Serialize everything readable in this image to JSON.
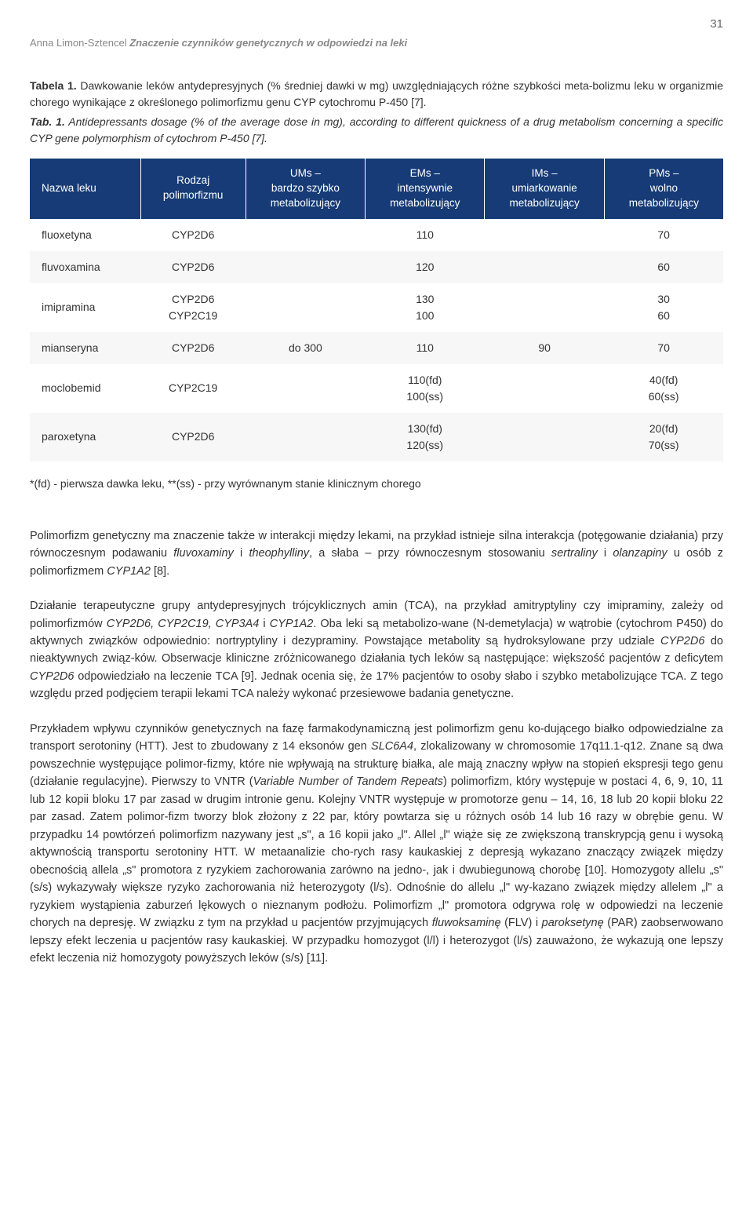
{
  "page_number": "31",
  "header": {
    "author": "Anna Limon-Sztencel",
    "title": "Znaczenie czynników genetycznych w odpowiedzi na leki"
  },
  "table_caption_pl": {
    "label": "Tabela 1.",
    "text": " Dawkowanie leków antydepresyjnych (% średniej dawki w mg) uwzględniających różne szybkości meta-bolizmu leku w organizmie chorego wynikające z określonego polimorfizmu genu CYP cytochromu P-450 [7]."
  },
  "table_caption_en": {
    "label": "Tab. 1.",
    "text": " Antidepressants dosage (% of the average dose in mg), according to different quickness of a drug metabolism concerning a specific CYP gene polymorphism of cytochrom P-450 [7]."
  },
  "table": {
    "header_bg": "#163b76",
    "header_fg": "#ffffff",
    "columns": [
      "Nazwa leku",
      "Rodzaj\npolimorfizmu",
      "UMs –\nbardzo szybko\nmetabolizujący",
      "EMs –\nintensywnie\nmetabolizujący",
      "IMs –\numiarkowanie\nmetabolizujący",
      "PMs –\nwolno\nmetabolizujący"
    ],
    "rows": [
      [
        "fluoxetyna",
        "CYP2D6",
        "",
        "110",
        "",
        "70"
      ],
      [
        "fluvoxamina",
        "CYP2D6",
        "",
        "120",
        "",
        "60"
      ],
      [
        "imipramina",
        "CYP2D6\nCYP2C19",
        "",
        "130\n100",
        "",
        "30\n60"
      ],
      [
        "mianseryna",
        "CYP2D6",
        "do 300",
        "110",
        "90",
        "70"
      ],
      [
        "moclobemid",
        "CYP2C19",
        "",
        "110(fd)\n100(ss)",
        "",
        "40(fd)\n60(ss)"
      ],
      [
        "paroxetyna",
        "CYP2D6",
        "",
        "130(fd)\n120(ss)",
        "",
        "20(fd)\n70(ss)"
      ]
    ]
  },
  "table_footnote": "*(fd) - pierwsza dawka leku, **(ss) - przy wyrównanym stanie klinicznym chorego",
  "paragraphs": {
    "p1": "Polimorfizm genetyczny ma znaczenie także w interakcji między lekami, na przykład istnieje silna interakcja (potęgowanie działania) przy równoczesnym podawaniu fluvoxaminy i theophylliny, a słaba – przy równoczesnym stosowaniu sertraliny i olanzapiny u osób z polimorfizmem CYP1A2 [8].",
    "p2": "Działanie terapeutyczne grupy antydepresyjnych trójcyklicznych amin (TCA), na przykład amitryptyliny czy imipraminy, zależy od polimorfizmów CYP2D6, CYP2C19, CYP3A4 i CYP1A2. Oba leki są metabolizo-wane (N-demetylacja) w wątrobie (cytochrom P450) do aktywnych związków odpowiednio: nortryptyliny i dezypraminy. Powstające metabolity są hydroksylowane przy udziale CYP2D6 do nieaktywnych związ-ków. Obserwacje kliniczne zróżnicowanego działania tych leków są następujące: większość pacjentów z deficytem CYP2D6 odpowiedziało na leczenie TCA [9]. Jednak ocenia się, że 17% pacjentów to osoby słabo i szybko metabolizujące TCA. Z tego względu przed podjęciem terapii lekami TCA należy wykonać przesiewowe badania genetyczne.",
    "p3": "Przykładem wpływu czynników genetycznych na fazę farmakodynamiczną jest polimorfizm genu ko-dującego białko odpowiedzialne za transport serotoniny (HTT). Jest to zbudowany z 14 eksonów gen SLC6A4, zlokalizowany w chromosomie 17q11.1-q12. Znane są dwa powszechnie występujące polimor-fizmy, które nie wpływają na strukturę białka, ale mają znaczny wpływ na stopień ekspresji tego genu (działanie regulacyjne). Pierwszy to VNTR (Variable Number of Tandem Repeats) polimorfizm, który występuje w postaci 4, 6, 9, 10, 11 lub 12 kopii bloku 17 par zasad w drugim intronie genu. Kolejny VNTR występuje w promotorze genu – 14, 16, 18 lub 20 kopii bloku 22 par zasad. Zatem polimor-fizm tworzy blok złożony z 22 par, który powtarza się u różnych osób 14 lub 16 razy w obrębie genu. W przypadku 14 powtórzeń polimorfizm nazywany jest „s\", a 16 kopii jako „l\". Allel „l\" wiąże się ze zwiększoną transkrypcją genu i wysoką aktywnością transportu serotoniny HTT. W metaanalizie cho-rych rasy kaukaskiej z depresją wykazano znaczący związek między obecnością allela „s\" promotora z ryzykiem zachorowania zarówno na jedno-, jak i dwubiegunową chorobę [10]. Homozygoty allelu „s\" (s/s) wykazywały większe ryzyko zachorowania niż heterozygoty (l/s). Odnośnie do allelu „l\" wy-kazano związek między allelem „l\" a ryzykiem wystąpienia zaburzeń lękowych o nieznanym podłożu. Polimorfizm „l\" promotora odgrywa rolę w odpowiedzi na leczenie chorych na depresję. W związku z tym na przykład u pacjentów przyjmujących fluwoksaminę (FLV) i paroksetynę (PAR) zaobserwowano lepszy efekt leczenia u pacjentów rasy kaukaskiej. W przypadku homozygot (l/l) i heterozygot (l/s) zauważono, że wykazują one lepszy efekt leczenia niż homozygoty powyższych leków (s/s) [11]."
  }
}
